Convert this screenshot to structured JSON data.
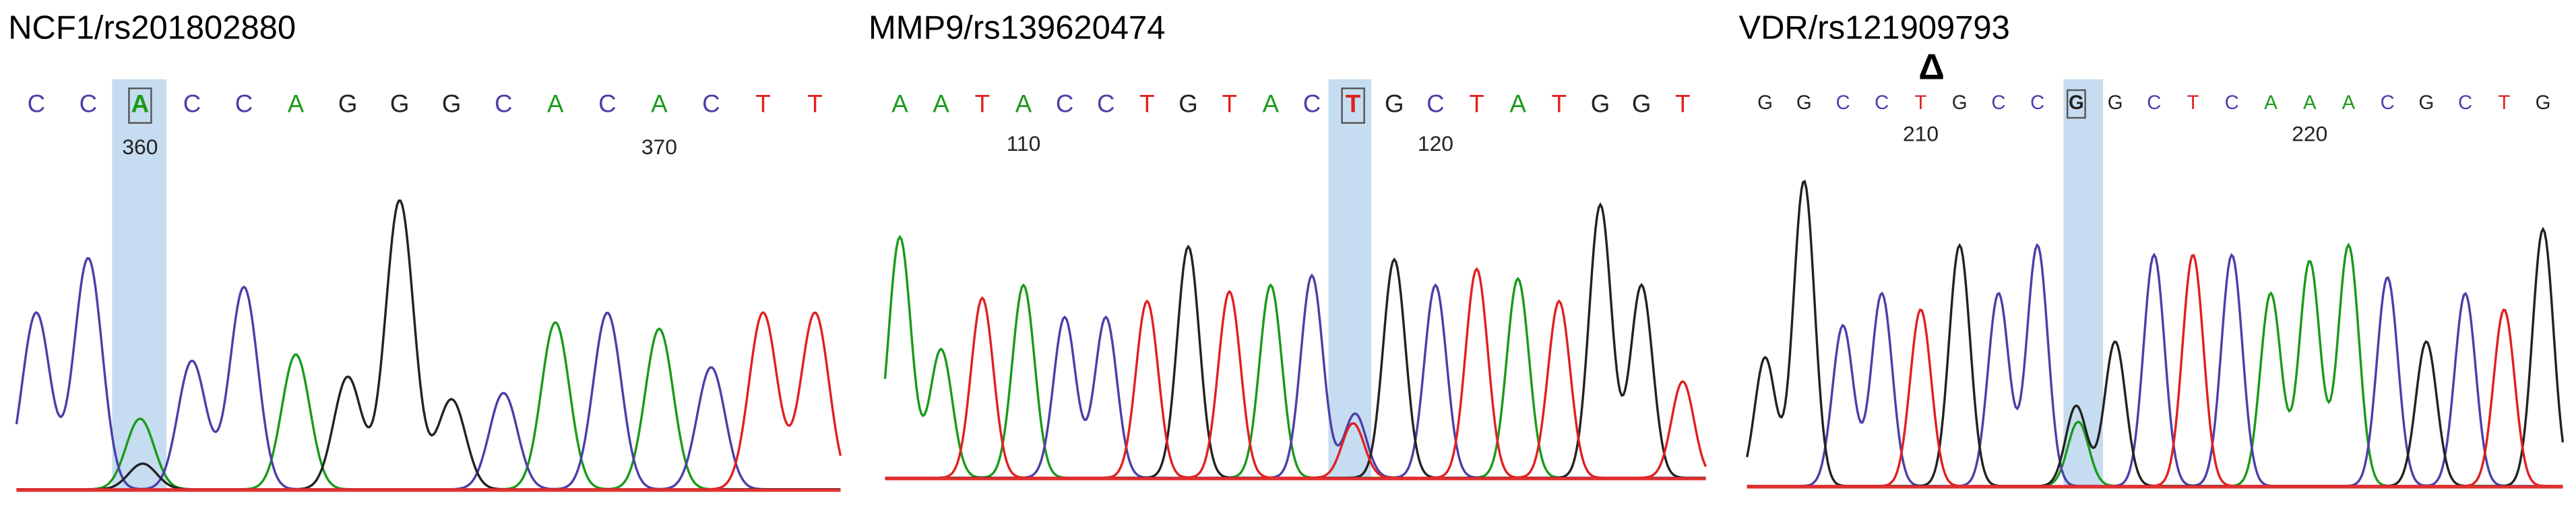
{
  "panels": [
    {
      "title": "NCF1/rs201802880",
      "bases": [
        "C",
        "C",
        "A",
        "C",
        "C",
        "A",
        "G",
        "G",
        "G",
        "C",
        "A",
        "C",
        "A",
        "C",
        "T",
        "T"
      ],
      "position_labels": [
        360,
        370
      ]
    },
    {
      "title": "MMP9/rs139620474",
      "bases": [
        "A",
        "A",
        "T",
        "A",
        "C",
        "C",
        "T",
        "G",
        "T",
        "A",
        "C",
        "T",
        "G",
        "C",
        "T",
        "A",
        "T",
        "G",
        "G",
        "T"
      ],
      "position_labels": [
        110,
        120
      ]
    },
    {
      "title": "VDR/rs121909793",
      "marker": "Δ",
      "bases": [
        "G",
        "G",
        "C",
        "C",
        "T",
        "G",
        "C",
        "C",
        "G",
        "G",
        "C",
        "T",
        "C",
        "A",
        "A",
        "A",
        "C",
        "G",
        "C",
        "T",
        "G"
      ],
      "position_labels": [
        210,
        220
      ]
    }
  ]
}
